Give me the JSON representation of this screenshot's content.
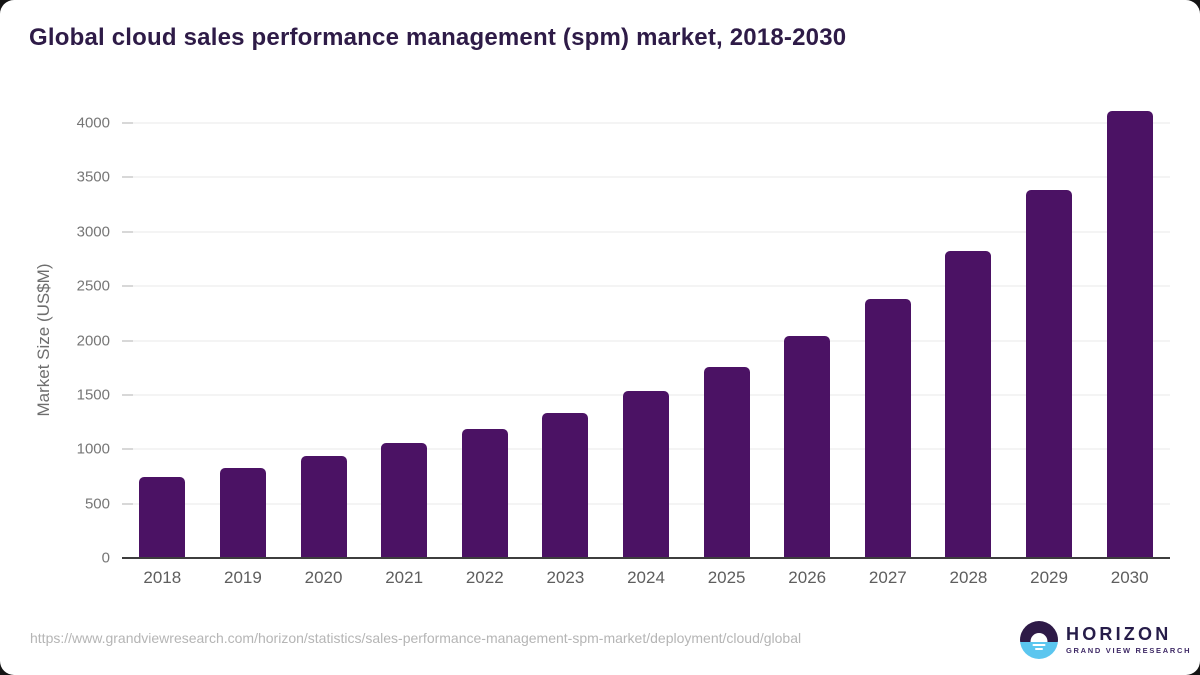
{
  "header": {
    "title": "Global cloud sales performance management (spm) market, 2018-2030"
  },
  "chart_data": {
    "type": "bar",
    "title": "Global cloud sales performance management (spm) market, 2018-2030",
    "categories": [
      "2018",
      "2019",
      "2020",
      "2021",
      "2022",
      "2023",
      "2024",
      "2025",
      "2026",
      "2027",
      "2028",
      "2029",
      "2030"
    ],
    "values": [
      745,
      830,
      935,
      1055,
      1185,
      1335,
      1540,
      1755,
      2040,
      2385,
      2825,
      3385,
      4110
    ],
    "xlabel": "",
    "ylabel": "Market Size (US$M)",
    "yticks": [
      0,
      500,
      1000,
      1500,
      2000,
      2500,
      3000,
      3500,
      4000
    ],
    "ylim": [
      0,
      4000
    ],
    "grid": true,
    "legend": false,
    "bar_color": "#4B1264"
  },
  "footer": {
    "source_url": "https://www.grandviewresearch.com/horizon/statistics/sales-performance-management-spm-market/deployment/cloud/global",
    "logo": {
      "brand": "HORIZON",
      "subtitle": "GRAND VIEW RESEARCH"
    }
  },
  "colors": {
    "bar": "#4B1264",
    "title_text": "#2E1B47",
    "axis_text": "#767676",
    "xaxis_text": "#5E5E5E",
    "gridline": "#E9E9E9",
    "baseline": "#3D3D3D",
    "url_text": "#B5B5B5",
    "logo_purple": "#2E1A47",
    "logo_blue": "#5BC6EF",
    "logo_navy": "#261C49"
  }
}
